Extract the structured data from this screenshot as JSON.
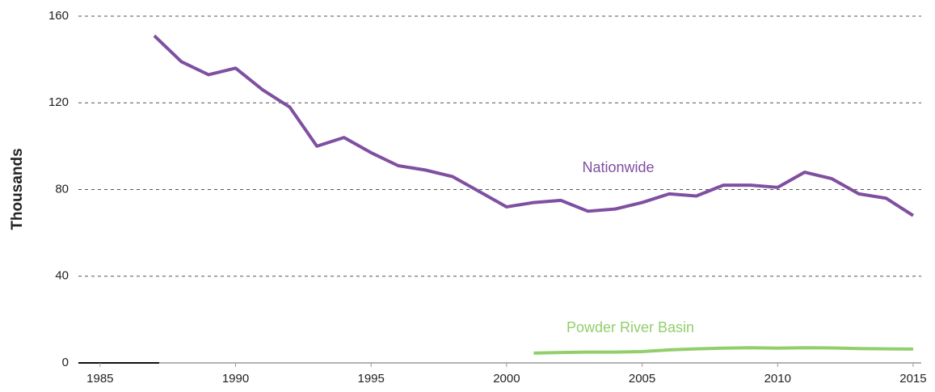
{
  "chart_data": {
    "type": "line",
    "y_label": "Thousands",
    "x": [
      1987,
      1988,
      1989,
      1990,
      1991,
      1992,
      1993,
      1994,
      1995,
      1996,
      1997,
      1998,
      1999,
      2000,
      2001,
      2002,
      2003,
      2004,
      2005,
      2006,
      2007,
      2008,
      2009,
      2010,
      2011,
      2012,
      2013,
      2014,
      2015
    ],
    "series": [
      {
        "name": "Nationwide",
        "color": "#7f4fa0",
        "values": [
          151,
          139,
          133,
          136,
          126,
          118,
          100,
          104,
          97,
          91,
          89,
          86,
          79,
          72,
          74,
          75,
          70,
          71,
          74,
          78,
          77,
          82,
          82,
          81,
          88,
          85,
          78,
          76,
          68
        ]
      },
      {
        "name": "Powder River Basin",
        "color": "#92cf6c",
        "values": [
          null,
          null,
          null,
          null,
          null,
          null,
          null,
          null,
          null,
          null,
          null,
          null,
          null,
          null,
          4.5,
          4.8,
          5,
          5,
          5.2,
          6,
          6.5,
          6.8,
          7,
          6.8,
          7,
          6.9,
          6.6,
          6.5,
          6.4
        ]
      }
    ],
    "xlim": [
      1984.2,
      2015.3
    ],
    "ylim": [
      0,
      160
    ],
    "xticks": [
      1985,
      1990,
      1995,
      2000,
      2005,
      2010,
      2015
    ],
    "yticks": [
      0,
      40,
      80,
      120,
      160
    ],
    "grid": true
  }
}
